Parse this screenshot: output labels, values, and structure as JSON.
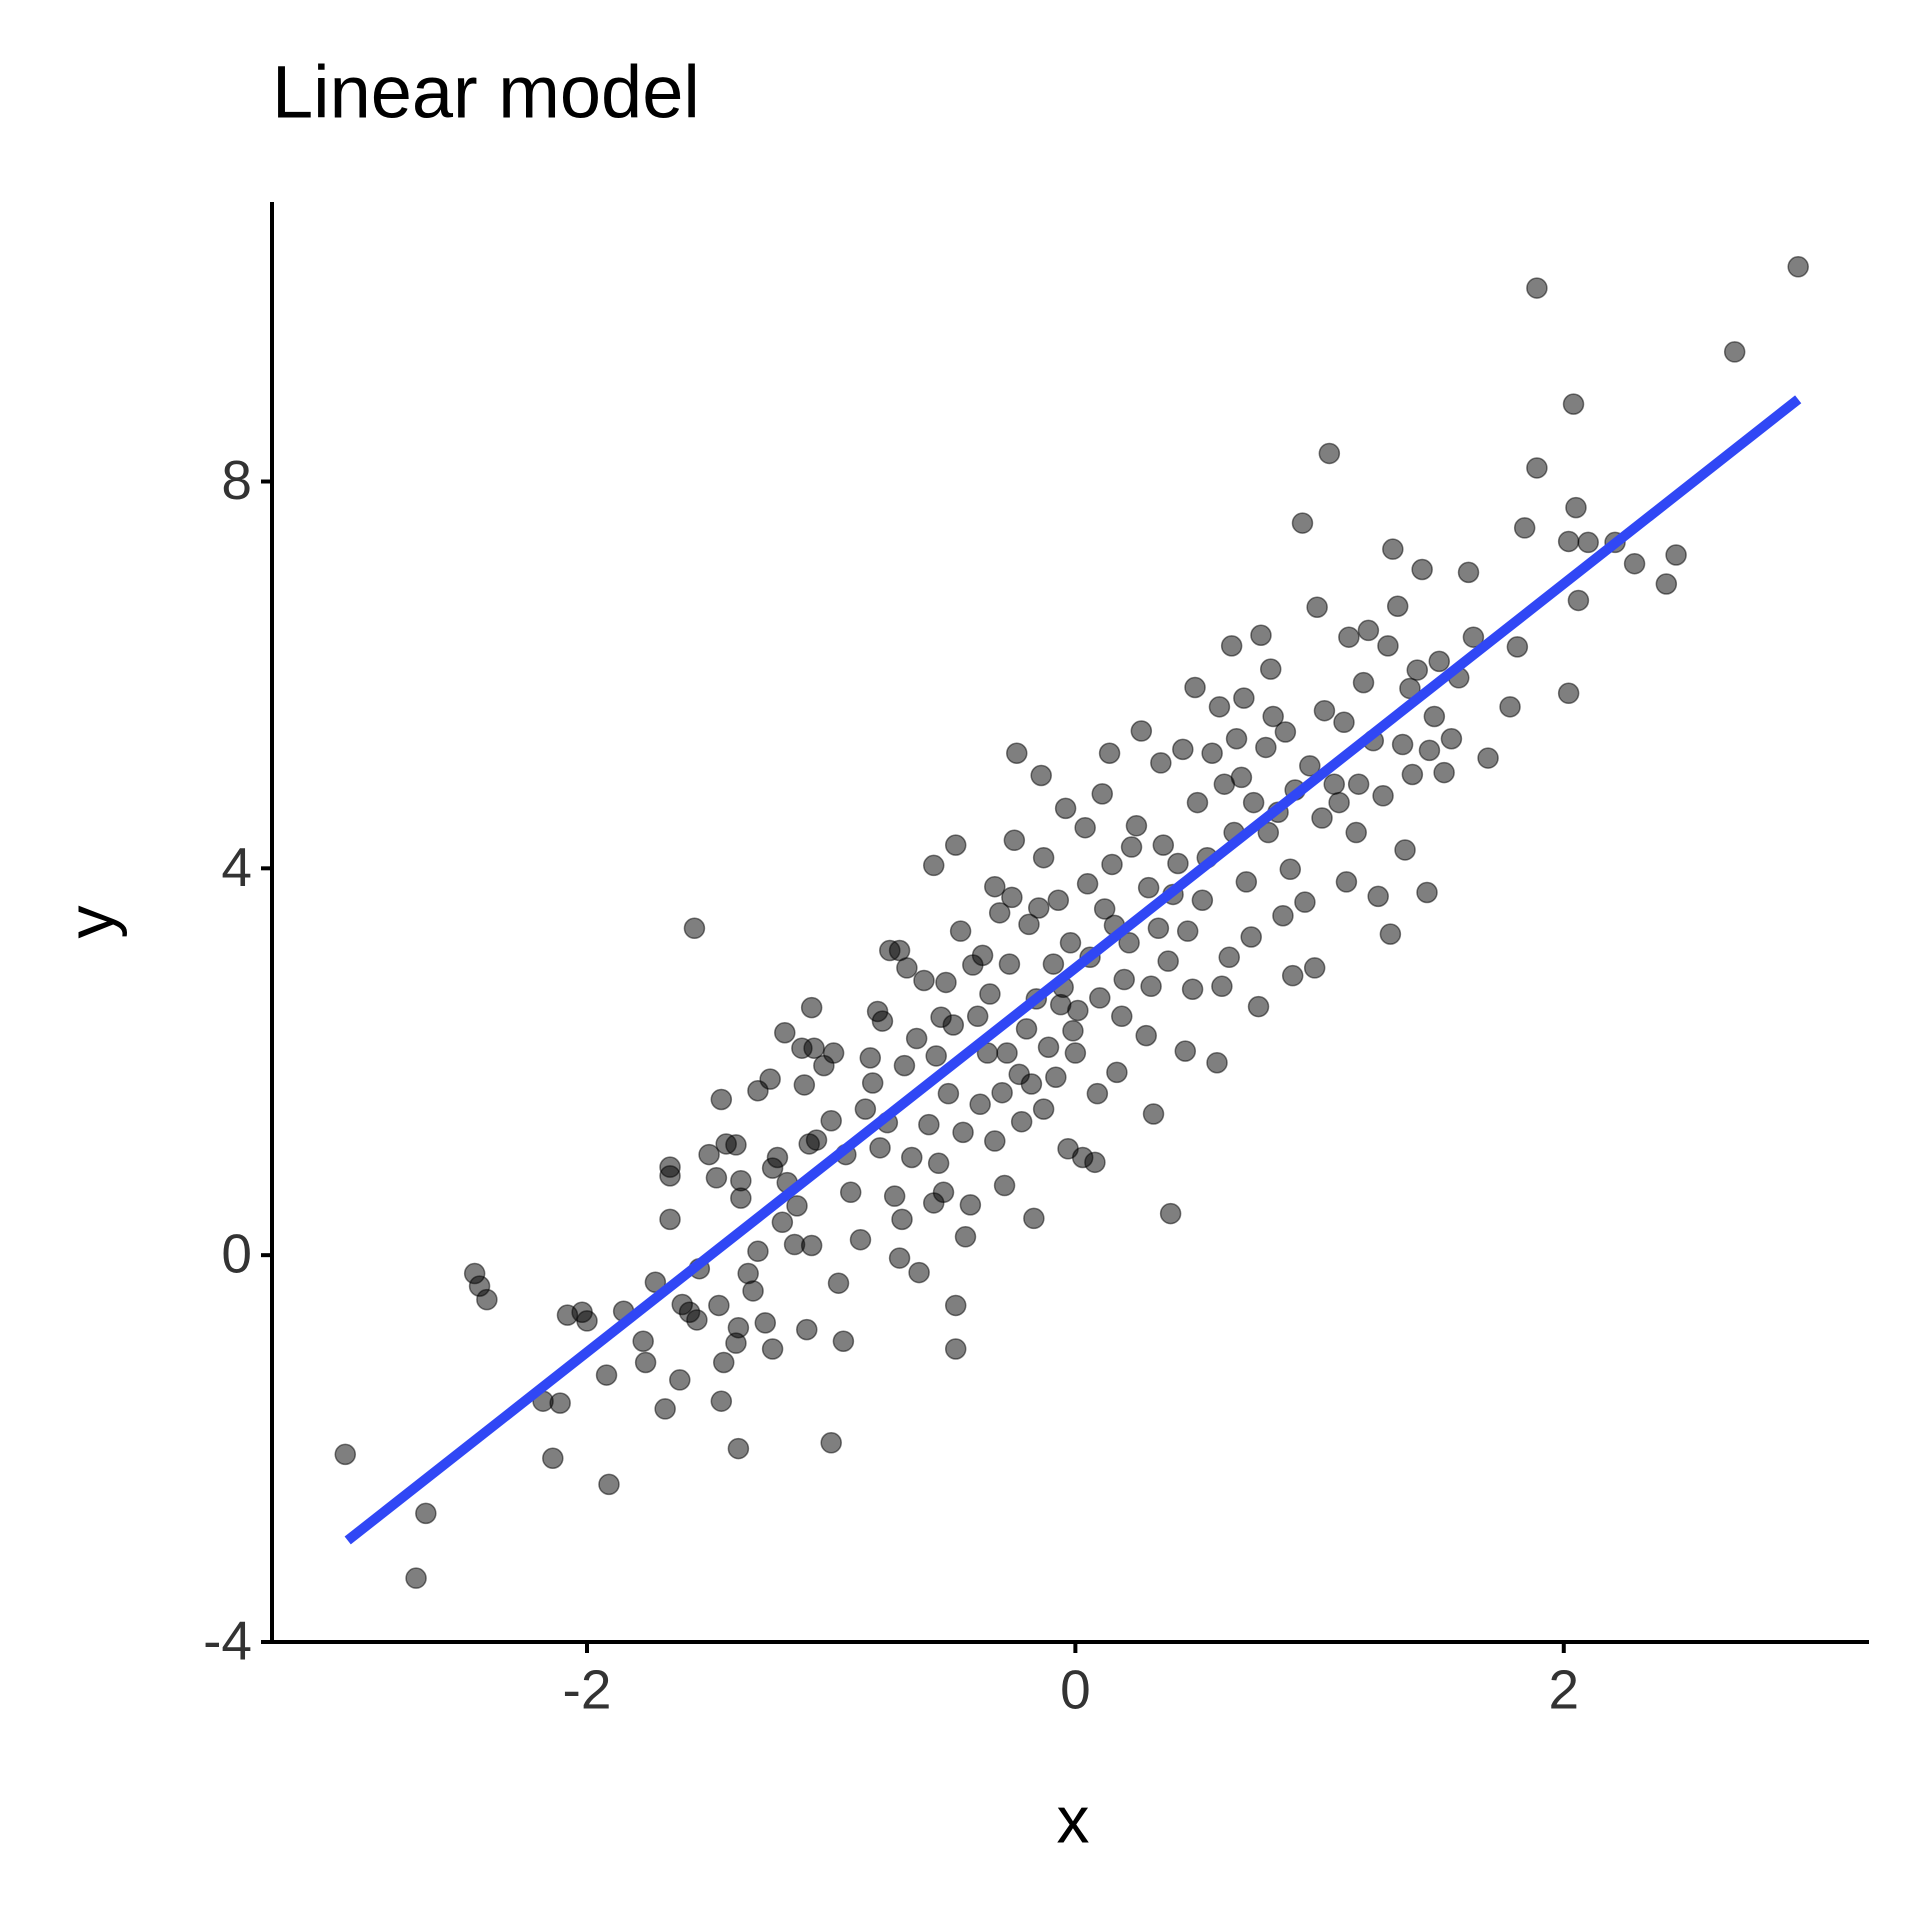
{
  "chart_data": {
    "type": "scatter",
    "title": "Linear model",
    "x_label": "x",
    "y_label": "y",
    "xlim": [
      -3.29,
      3.25
    ],
    "ylim": [
      -4,
      10.89
    ],
    "xticks": [
      -2,
      0,
      2
    ],
    "yticks": [
      -4,
      0,
      4,
      8
    ],
    "grid": false,
    "series": [
      {
        "type": "scatter",
        "color": "#000000",
        "opacity": 0.5,
        "x": [
          -2.99,
          -2.7,
          -2.66,
          -2.46,
          -2.44,
          -2.41,
          -2.18,
          -2.14,
          -2.11,
          -2.08,
          -2.02,
          -2.0,
          -1.92,
          -1.91,
          -1.85,
          -1.77,
          -1.76,
          -1.72,
          -1.68,
          -1.66,
          -1.66,
          -1.62,
          -1.66,
          -1.61,
          -1.58,
          -1.56,
          -1.55,
          -1.54,
          -1.5,
          -1.47,
          -1.46,
          -1.45,
          -1.45,
          -1.44,
          -1.43,
          -1.39,
          -1.39,
          -1.38,
          -1.38,
          -1.37,
          -1.37,
          -1.34,
          -1.32,
          -1.3,
          -1.3,
          -1.27,
          -1.25,
          -1.24,
          -1.24,
          -1.22,
          -1.2,
          -1.19,
          -1.18,
          -1.15,
          -1.14,
          -1.12,
          -1.11,
          -1.1,
          -1.09,
          -1.08,
          -1.08,
          -1.07,
          -1.06,
          -1.03,
          -1.0,
          -1.0,
          -0.99,
          -0.97,
          -0.95,
          -0.94,
          -0.92,
          -0.88,
          -0.86,
          -0.84,
          -0.83,
          -0.81,
          -0.8,
          -0.79,
          -0.77,
          -0.76,
          -0.74,
          -0.72,
          -0.72,
          -0.71,
          -0.7,
          -0.69,
          -0.67,
          -0.65,
          -0.64,
          -0.62,
          -0.6,
          -0.58,
          -0.58,
          -0.57,
          -0.56,
          -0.55,
          -0.54,
          -0.53,
          -0.52,
          -0.5,
          -0.49,
          -0.49,
          -0.49,
          -0.47,
          -0.46,
          -0.45,
          -0.43,
          -0.42,
          -0.4,
          -0.39,
          -0.38,
          -0.36,
          -0.35,
          -0.33,
          -0.33,
          -0.31,
          -0.3,
          -0.29,
          -0.28,
          -0.27,
          -0.26,
          -0.25,
          -0.24,
          -0.23,
          -0.22,
          -0.2,
          -0.19,
          -0.18,
          -0.17,
          -0.16,
          -0.15,
          -0.14,
          -0.13,
          -0.13,
          -0.11,
          -0.09,
          -0.08,
          -0.07,
          -0.06,
          -0.05,
          -0.04,
          -0.03,
          -0.02,
          -0.01,
          0.0,
          0.01,
          0.03,
          0.04,
          0.05,
          0.06,
          0.08,
          0.09,
          0.1,
          0.11,
          0.12,
          0.14,
          0.15,
          0.16,
          0.17,
          0.19,
          0.2,
          0.22,
          0.23,
          0.25,
          0.27,
          0.29,
          0.3,
          0.31,
          0.32,
          0.34,
          0.35,
          0.36,
          0.38,
          0.39,
          0.4,
          0.42,
          0.44,
          0.45,
          0.46,
          0.48,
          0.49,
          0.5,
          0.52,
          0.54,
          0.56,
          0.58,
          0.59,
          0.6,
          0.61,
          0.63,
          0.64,
          0.65,
          0.66,
          0.68,
          0.69,
          0.7,
          0.72,
          0.73,
          0.75,
          0.76,
          0.78,
          0.79,
          0.8,
          0.81,
          0.83,
          0.85,
          0.86,
          0.88,
          0.89,
          0.9,
          0.93,
          0.94,
          0.96,
          0.98,
          0.99,
          1.01,
          1.02,
          1.04,
          1.06,
          1.08,
          1.1,
          1.11,
          1.12,
          1.15,
          1.16,
          1.18,
          1.2,
          1.22,
          1.24,
          1.26,
          1.28,
          1.29,
          1.3,
          1.32,
          1.34,
          1.35,
          1.37,
          1.38,
          1.4,
          1.42,
          1.44,
          1.45,
          1.47,
          1.49,
          1.51,
          1.54,
          1.57,
          1.61,
          1.63,
          1.69,
          1.78,
          1.81,
          1.84,
          1.89,
          1.89,
          2.02,
          2.02,
          2.04,
          2.05,
          2.06,
          2.1,
          2.21,
          2.29,
          2.42,
          2.46,
          2.7,
          2.96
        ],
        "values": [
          -2.06,
          -3.34,
          -2.67,
          -0.19,
          -0.32,
          -0.46,
          -1.51,
          -2.1,
          -1.53,
          -0.62,
          -0.59,
          -0.68,
          -1.24,
          -2.37,
          -0.58,
          -0.89,
          -1.11,
          -0.28,
          -1.59,
          0.91,
          0.37,
          -1.29,
          0.82,
          -0.51,
          -0.59,
          3.38,
          -0.67,
          -0.14,
          1.04,
          0.8,
          -0.52,
          1.61,
          -1.51,
          -1.11,
          1.15,
          -0.91,
          1.14,
          -2.0,
          -0.75,
          0.59,
          0.77,
          -0.19,
          -0.37,
          0.04,
          1.7,
          -0.7,
          1.82,
          -0.97,
          0.9,
          1.01,
          0.34,
          2.3,
          0.75,
          0.11,
          0.51,
          2.14,
          1.76,
          -0.77,
          1.15,
          2.56,
          0.1,
          2.14,
          1.19,
          1.96,
          -1.94,
          1.39,
          2.09,
          -0.29,
          -0.89,
          1.04,
          0.65,
          0.16,
          1.51,
          2.04,
          1.78,
          2.52,
          1.11,
          2.42,
          1.37,
          3.15,
          0.61,
          -0.03,
          3.15,
          0.37,
          1.96,
          2.97,
          1.01,
          2.24,
          -0.18,
          2.84,
          1.35,
          0.54,
          4.03,
          2.06,
          0.95,
          2.46,
          0.65,
          2.82,
          1.67,
          2.38,
          4.24,
          -0.52,
          -0.97,
          3.35,
          1.27,
          0.19,
          0.52,
          3.0,
          2.47,
          1.56,
          3.1,
          2.09,
          2.7,
          1.18,
          3.81,
          3.54,
          1.68,
          0.72,
          2.09,
          3.01,
          3.7,
          4.29,
          5.19,
          1.87,
          1.38,
          2.34,
          3.42,
          1.77,
          0.38,
          2.65,
          3.59,
          4.96,
          4.11,
          1.51,
          2.15,
          3.01,
          1.84,
          3.67,
          2.59,
          2.77,
          4.62,
          1.1,
          3.23,
          2.32,
          2.09,
          2.53,
          1.01,
          4.42,
          3.84,
          3.08,
          0.96,
          1.67,
          2.66,
          4.77,
          3.58,
          5.19,
          4.04,
          3.41,
          1.89,
          2.47,
          2.85,
          3.23,
          4.22,
          4.44,
          5.42,
          2.27,
          3.8,
          2.78,
          1.46,
          3.38,
          5.09,
          4.24,
          3.04,
          0.43,
          3.73,
          4.05,
          5.23,
          2.11,
          3.35,
          2.75,
          5.87,
          4.68,
          3.67,
          4.11,
          5.19,
          1.99,
          5.67,
          2.78,
          4.87,
          3.08,
          6.3,
          4.37,
          5.34,
          4.94,
          5.76,
          3.86,
          3.29,
          4.68,
          2.57,
          6.41,
          5.25,
          4.37,
          6.06,
          5.57,
          4.58,
          3.51,
          5.41,
          3.99,
          2.89,
          4.81,
          7.57,
          3.65,
          5.06,
          2.97,
          6.7,
          4.52,
          5.63,
          8.29,
          4.87,
          4.68,
          5.51,
          3.86,
          6.39,
          4.37,
          4.87,
          5.92,
          6.46,
          5.32,
          3.71,
          4.75,
          6.3,
          3.32,
          7.3,
          6.71,
          5.28,
          4.19,
          5.86,
          4.97,
          6.05,
          7.09,
          3.75,
          5.22,
          5.57,
          6.14,
          4.99,
          5.34,
          5.97,
          7.06,
          6.39,
          5.14,
          5.67,
          6.29,
          7.52,
          8.14,
          10.0,
          5.81,
          7.38,
          8.8,
          7.73,
          6.77,
          7.37,
          7.37,
          7.15,
          6.94,
          7.24,
          9.34,
          10.22
        ]
      },
      {
        "type": "line",
        "color": "#3047f5",
        "x": [
          -2.98,
          2.96
        ],
        "values": [
          -2.95,
          8.85
        ]
      }
    ]
  }
}
